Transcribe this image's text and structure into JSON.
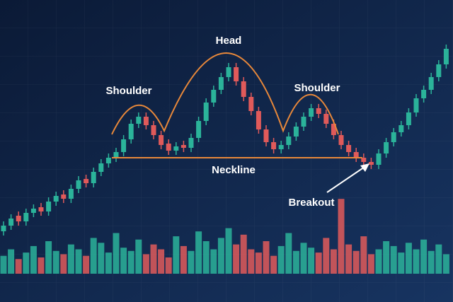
{
  "chart_data": {
    "type": "candlestick",
    "annotations": {
      "head": "Head",
      "left_shoulder": "Shoulder",
      "right_shoulder": "Shoulder",
      "neckline": "Neckline",
      "breakout": "Breakout"
    },
    "up_color": "#2bb39a",
    "down_color": "#e05a5a",
    "pattern_color": "#e8883a",
    "open": [
      100,
      108,
      122,
      114,
      126,
      134,
      128,
      142,
      152,
      146,
      160,
      174,
      168,
      184,
      196,
      204,
      212,
      230,
      252,
      262,
      250,
      236,
      224,
      214,
      222,
      218,
      232,
      256,
      282,
      300,
      318,
      332,
      312,
      290,
      270,
      244,
      226,
      216,
      222,
      234,
      248,
      262,
      274,
      266,
      252,
      236,
      222,
      212,
      204,
      198,
      194,
      210,
      226,
      240,
      250,
      268,
      288,
      300,
      318,
      336
    ],
    "high": [
      114,
      124,
      128,
      132,
      138,
      140,
      148,
      156,
      158,
      166,
      178,
      180,
      190,
      202,
      210,
      218,
      236,
      258,
      268,
      268,
      256,
      242,
      230,
      226,
      228,
      238,
      262,
      288,
      306,
      324,
      338,
      338,
      318,
      296,
      276,
      250,
      232,
      228,
      240,
      254,
      268,
      280,
      280,
      272,
      258,
      242,
      228,
      218,
      210,
      204,
      216,
      232,
      246,
      256,
      274,
      294,
      306,
      324,
      342,
      364
    ],
    "low": [
      94,
      102,
      108,
      108,
      120,
      122,
      122,
      136,
      140,
      140,
      154,
      162,
      162,
      178,
      190,
      198,
      206,
      224,
      246,
      244,
      230,
      216,
      208,
      208,
      212,
      212,
      226,
      250,
      276,
      294,
      312,
      306,
      284,
      264,
      238,
      220,
      210,
      210,
      216,
      228,
      242,
      256,
      260,
      246,
      230,
      216,
      206,
      198,
      192,
      188,
      188,
      204,
      220,
      234,
      244,
      262,
      282,
      294,
      312,
      330
    ],
    "close": [
      108,
      118,
      114,
      126,
      132,
      128,
      142,
      150,
      146,
      160,
      172,
      168,
      184,
      196,
      204,
      212,
      230,
      252,
      262,
      250,
      236,
      222,
      214,
      220,
      218,
      232,
      256,
      282,
      300,
      318,
      332,
      312,
      290,
      270,
      244,
      226,
      216,
      222,
      234,
      248,
      262,
      274,
      266,
      252,
      236,
      222,
      212,
      204,
      198,
      194,
      210,
      226,
      240,
      250,
      268,
      288,
      300,
      318,
      336,
      358
    ],
    "volume": [
      22,
      30,
      18,
      26,
      34,
      20,
      40,
      28,
      24,
      36,
      30,
      22,
      44,
      38,
      26,
      50,
      32,
      28,
      42,
      24,
      36,
      30,
      20,
      46,
      34,
      28,
      52,
      40,
      30,
      44,
      56,
      36,
      48,
      30,
      26,
      40,
      22,
      34,
      50,
      28,
      38,
      32,
      26,
      44,
      30,
      92,
      36,
      28,
      46,
      24,
      30,
      40,
      34,
      26,
      38,
      30,
      42,
      28,
      36,
      24
    ]
  }
}
